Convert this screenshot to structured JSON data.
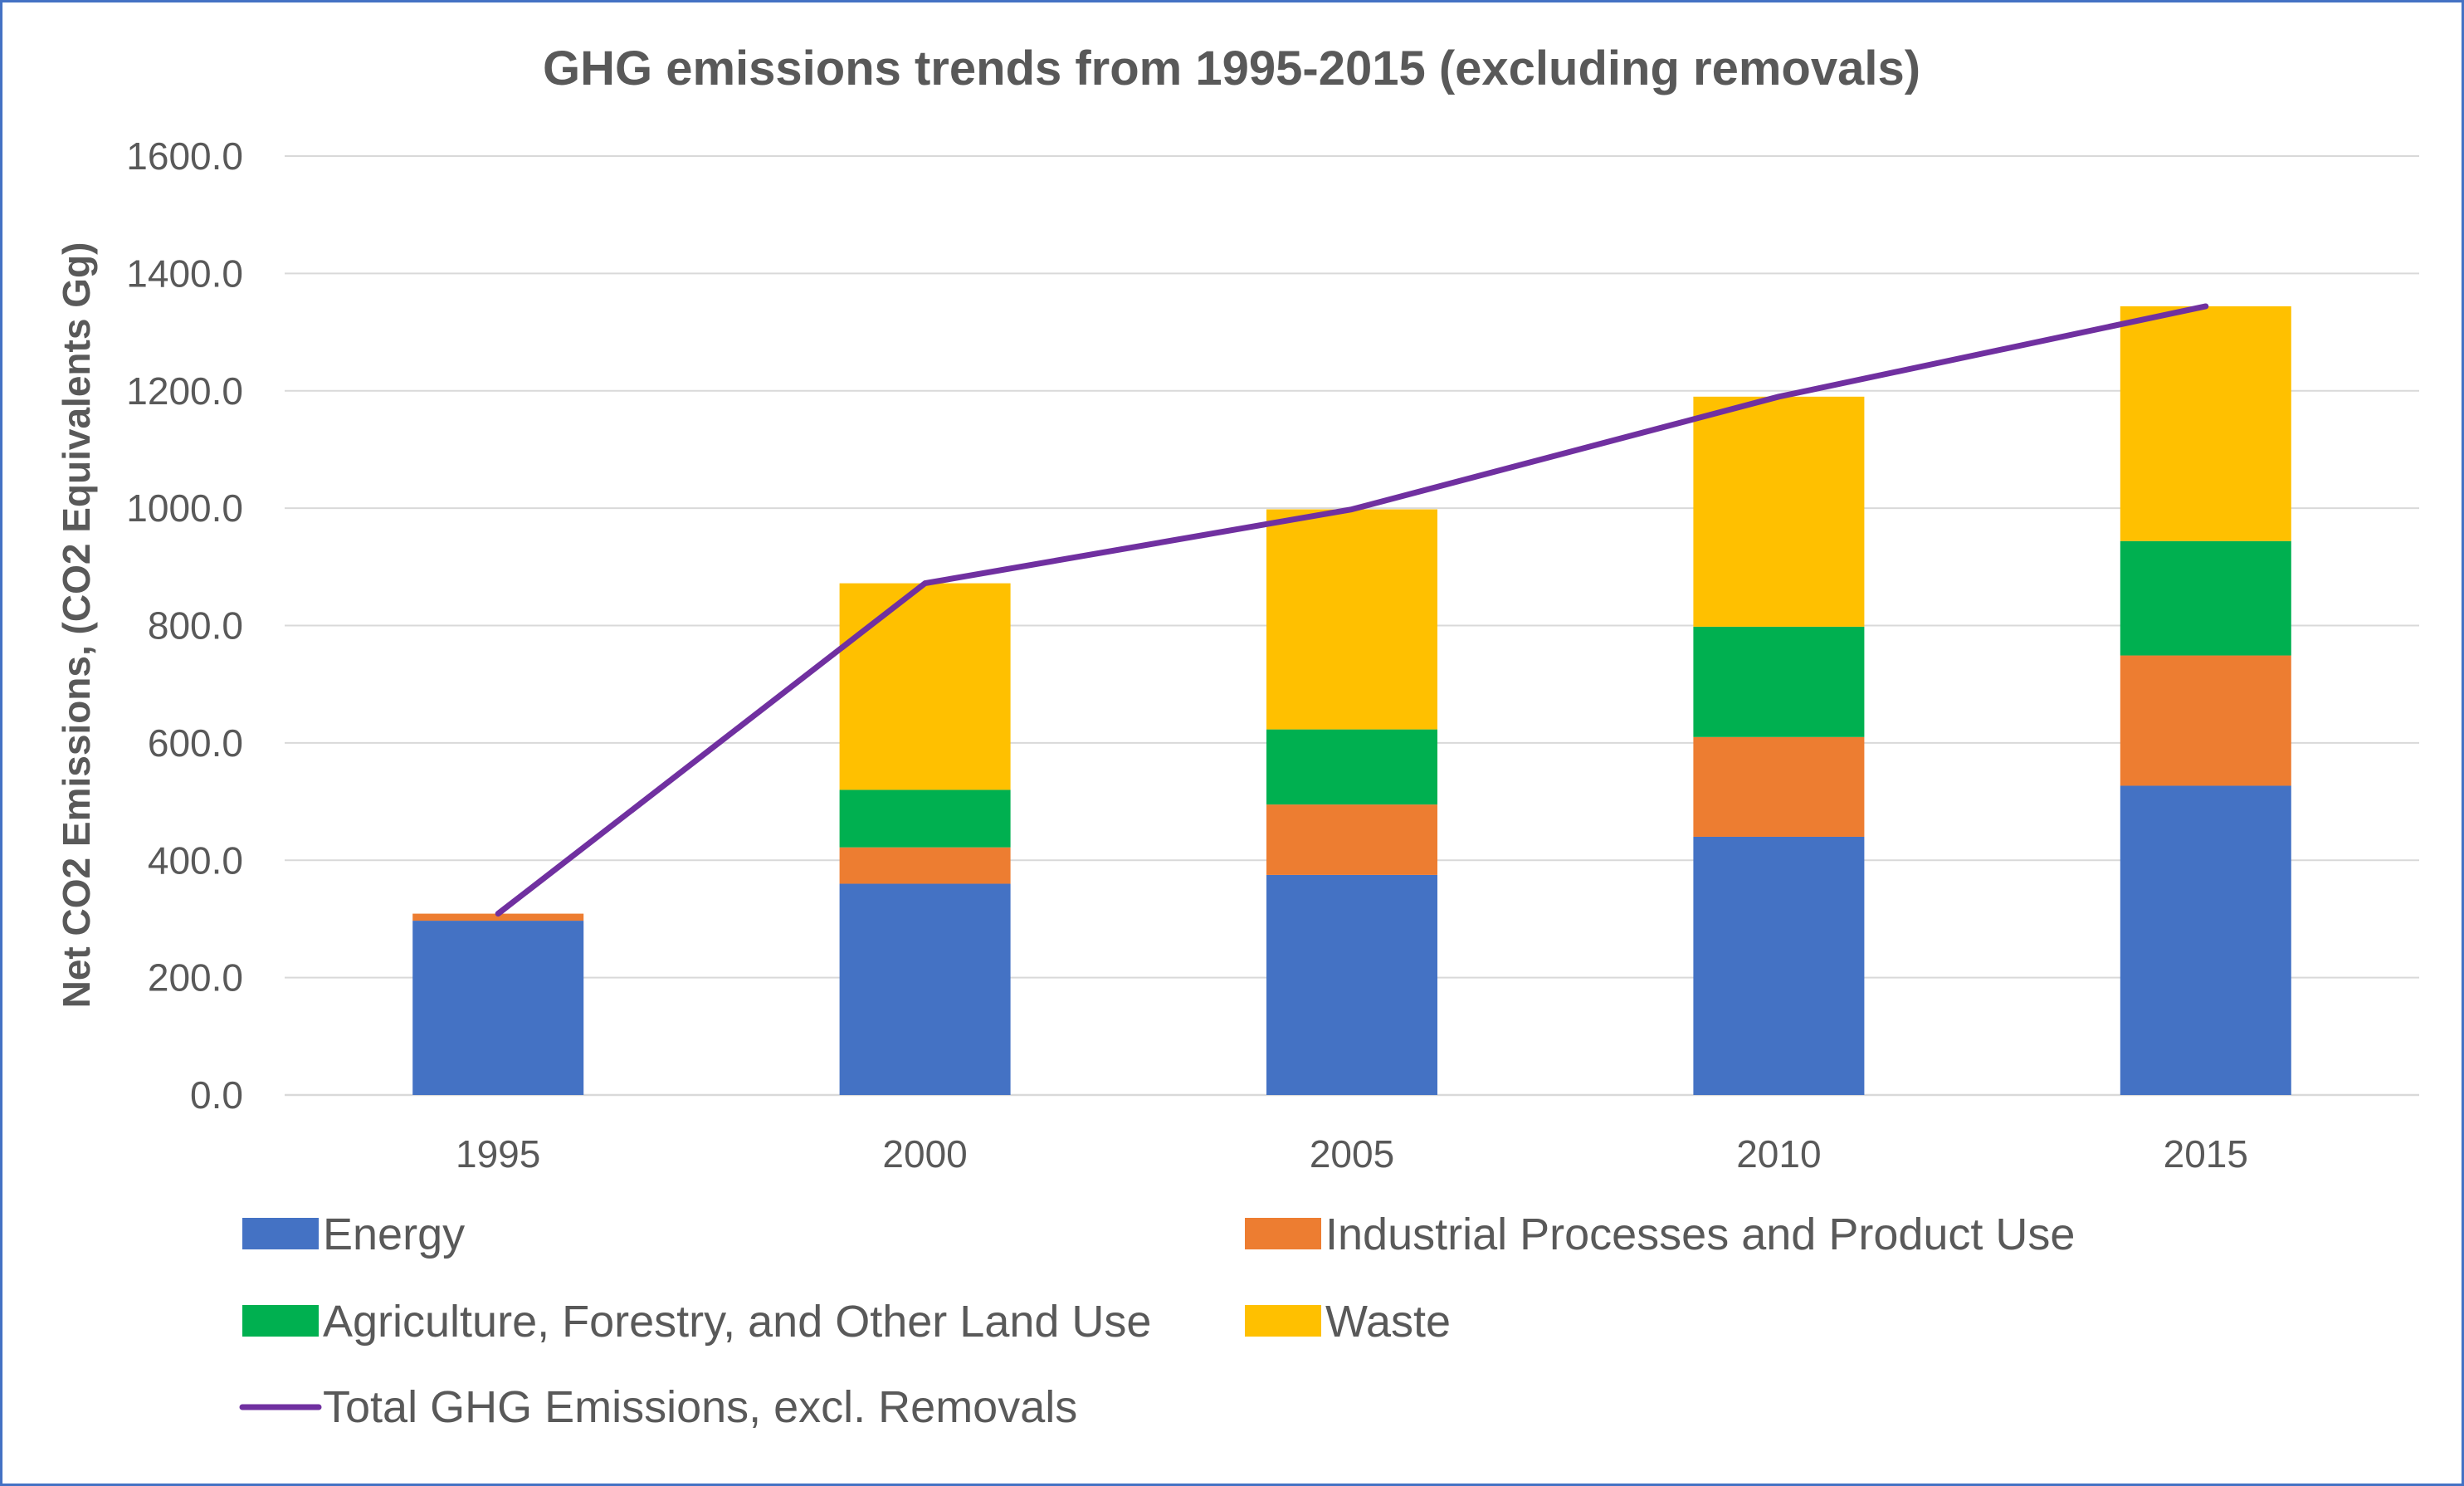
{
  "chart_data": {
    "type": "bar",
    "stacked": true,
    "title": "GHG emissions trends from 1995-2015 (excluding removals)",
    "ylabel": "Net CO2 Emissions, (CO2 Equivalents Gg)",
    "xlabel": "",
    "ylim": [
      0,
      1600
    ],
    "yticks": [
      "0.0",
      "200.0",
      "400.0",
      "600.0",
      "800.0",
      "1000.0",
      "1200.0",
      "1400.0",
      "1600.0"
    ],
    "categories": [
      "1995",
      "2000",
      "2005",
      "2010",
      "2015"
    ],
    "grid": true,
    "legend_position": "bottom",
    "series": [
      {
        "name": "Energy",
        "color": "#4472c4",
        "values": [
          297,
          360,
          375,
          440,
          527
        ]
      },
      {
        "name": "Industrial Processes and Product Use",
        "color": "#ed7d31",
        "values": [
          12,
          62,
          120,
          170,
          222
        ]
      },
      {
        "name": "Agriculture, Forestry, and Other Land Use",
        "color": "#00b050",
        "values": [
          0,
          98,
          128,
          188,
          195
        ]
      },
      {
        "name": "Waste",
        "color": "#ffc000",
        "values": [
          0,
          352,
          375,
          392,
          400
        ]
      }
    ],
    "line": {
      "name": "Total GHG Emissions, excl. Removals",
      "color": "#7030a0",
      "values": [
        309,
        872,
        998,
        1190,
        1344
      ]
    }
  }
}
